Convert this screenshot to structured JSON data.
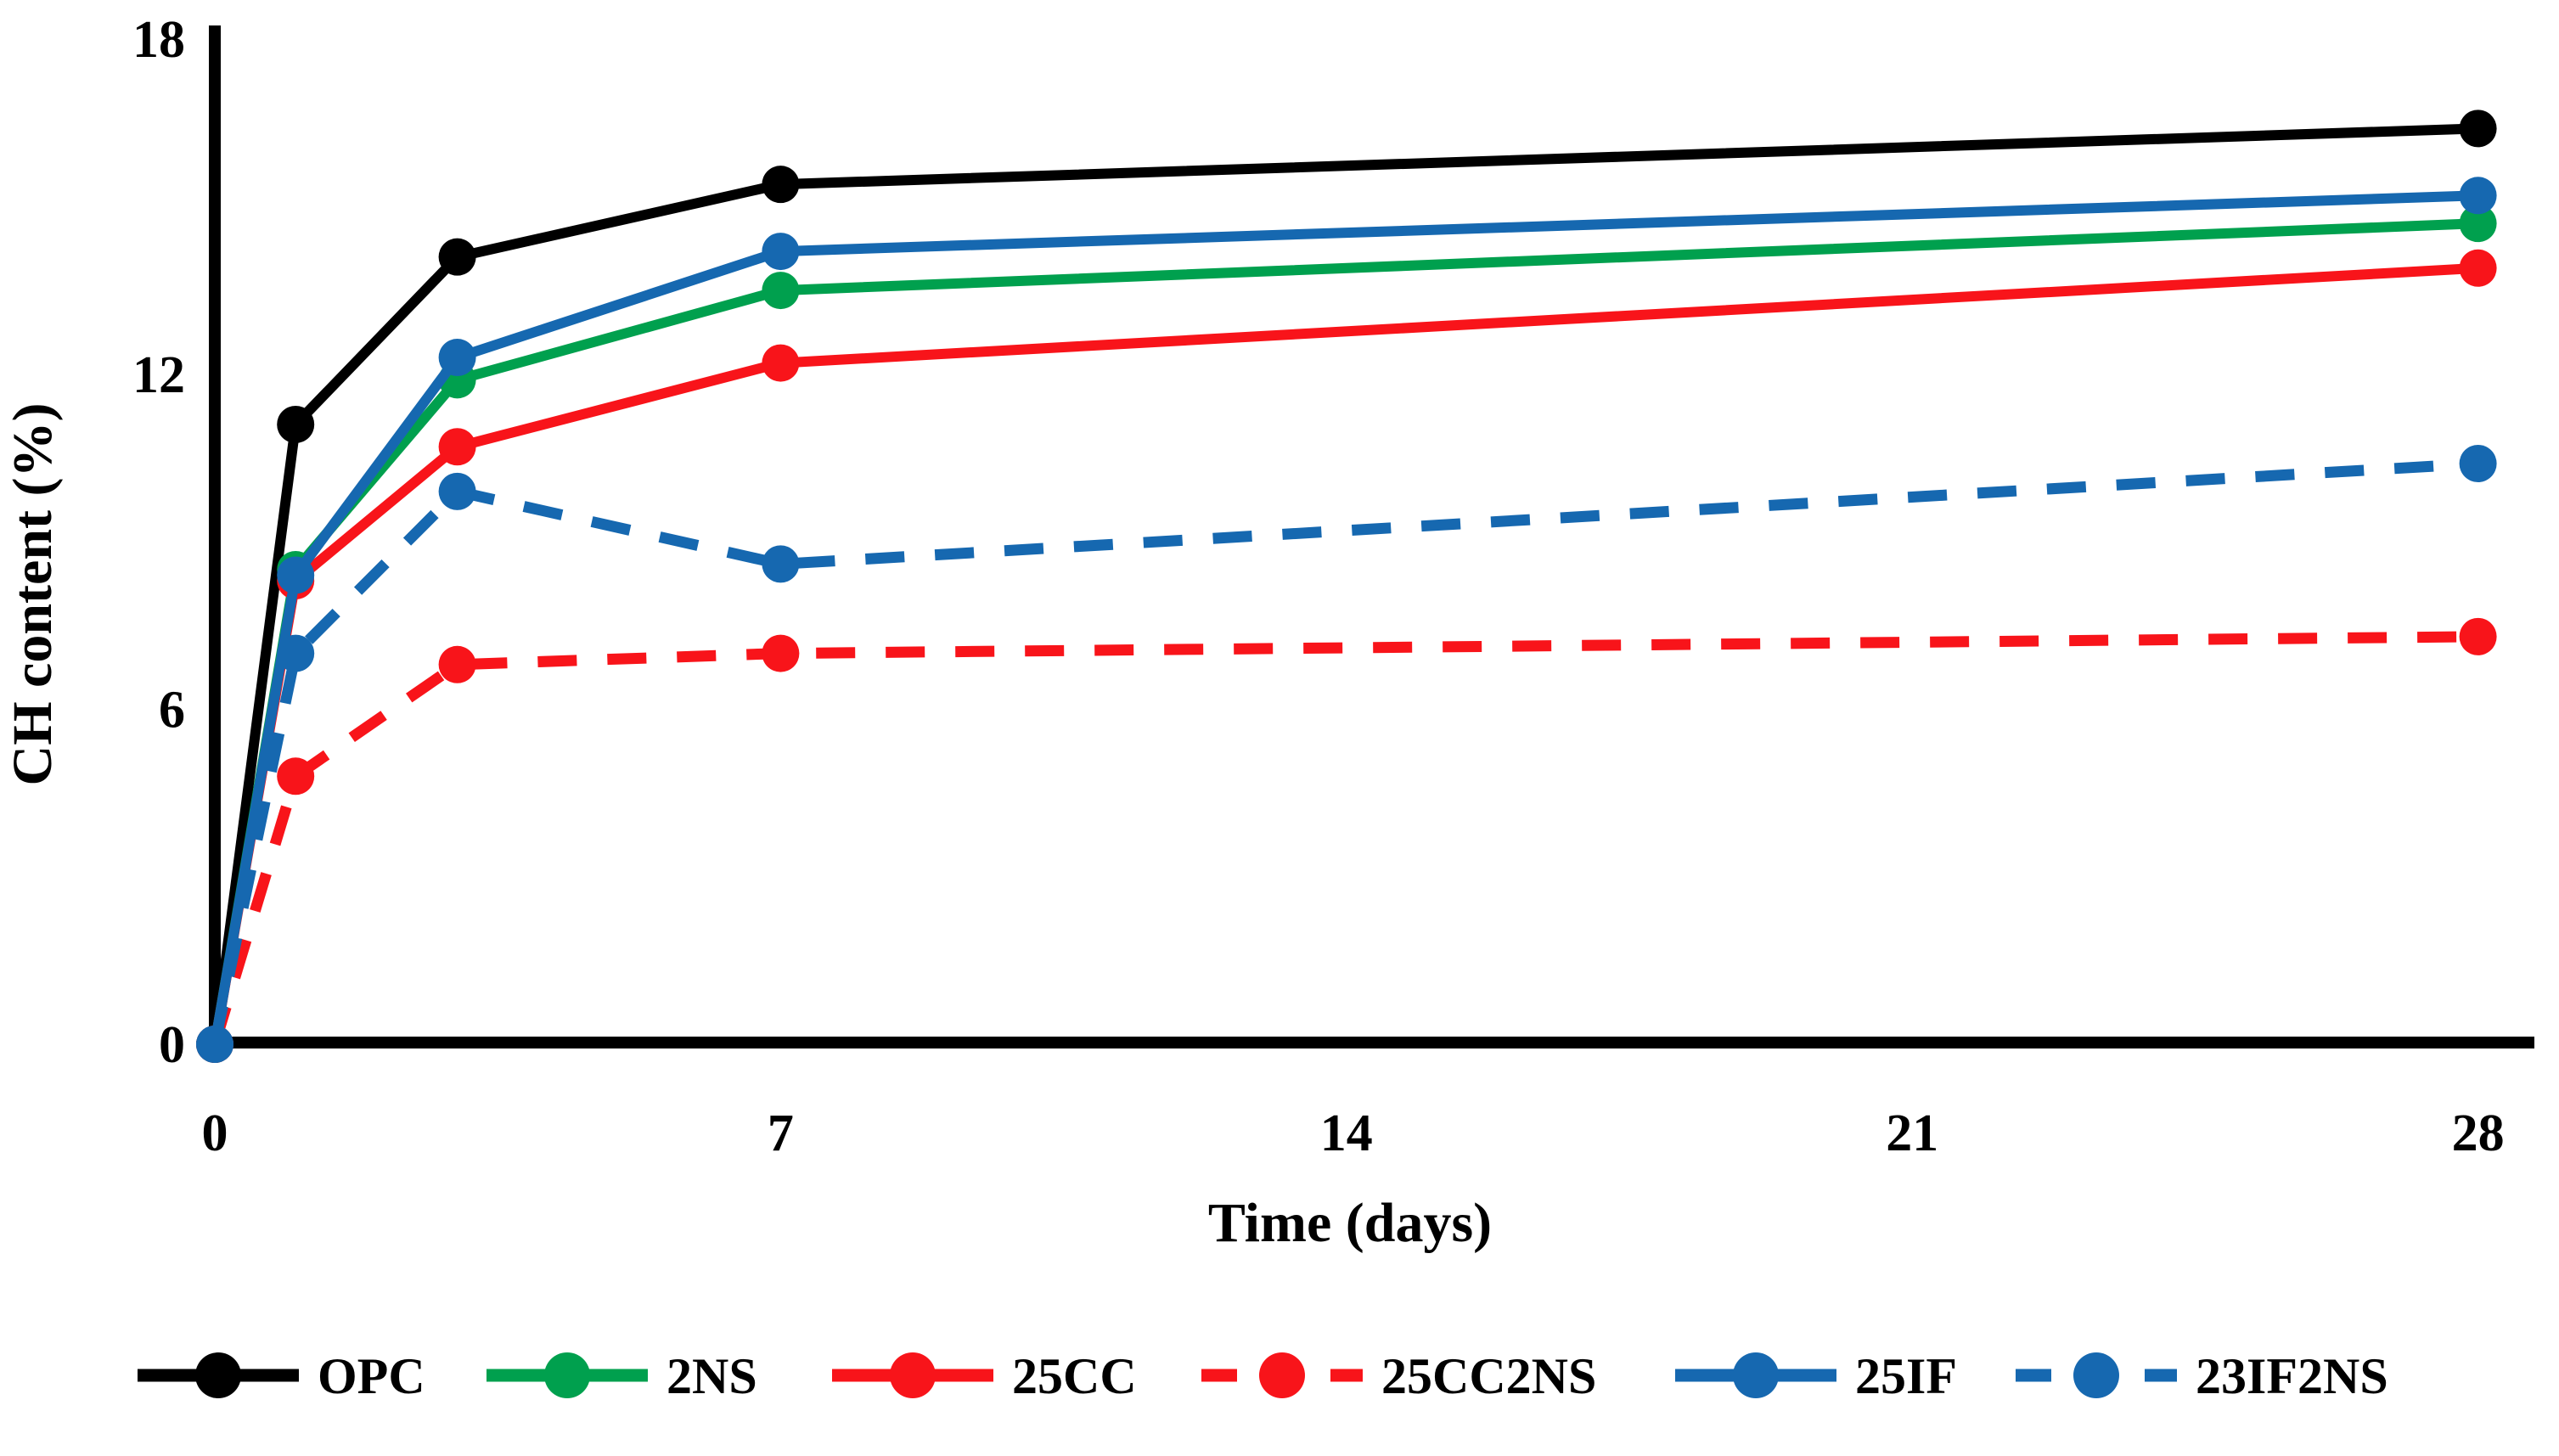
{
  "figure": {
    "background": "#FFFFFF",
    "description": "Line chart of CH content (%) versus hydration time (days) for six cementitious mixes"
  },
  "chart_data": {
    "type": "line",
    "title": "",
    "xlabel": "Time (days)",
    "ylabel": "CH content (%)",
    "x": [
      0,
      1,
      3,
      7,
      28
    ],
    "x_tick_labels": [
      "0",
      "7",
      "14",
      "21",
      "28"
    ],
    "x_ticks": [
      0,
      7,
      14,
      21,
      28
    ],
    "y_ticks": [
      0,
      6,
      12,
      18
    ],
    "y_tick_labels": [
      "0",
      "6",
      "12",
      "18"
    ],
    "xlim": [
      0,
      28.7
    ],
    "ylim": [
      0,
      18.2
    ],
    "grid": false,
    "legend_position": "bottom",
    "marker": "circle",
    "series": [
      {
        "name": "OPC",
        "color": "#000000",
        "style": "solid",
        "values": [
          0,
          11.1,
          14.1,
          15.4,
          16.4
        ]
      },
      {
        "name": "2NS",
        "color": "#00A04E",
        "style": "solid",
        "values": [
          0,
          8.5,
          11.9,
          13.5,
          14.7
        ]
      },
      {
        "name": "25CC",
        "color": "#F8141A",
        "style": "solid",
        "values": [
          0,
          8.3,
          10.7,
          12.2,
          13.9
        ]
      },
      {
        "name": "25CC2NS",
        "color": "#F8141A",
        "style": "dashed",
        "values": [
          0,
          4.8,
          6.8,
          7.0,
          7.3
        ]
      },
      {
        "name": "25IF",
        "color": "#1668B0",
        "style": "solid",
        "values": [
          0,
          8.4,
          12.3,
          14.2,
          15.2
        ]
      },
      {
        "name": "23IF2NS",
        "color": "#1668B0",
        "style": "dashed",
        "values": [
          0,
          7.0,
          9.9,
          8.6,
          10.4
        ]
      }
    ],
    "axis_color": "#000000"
  }
}
